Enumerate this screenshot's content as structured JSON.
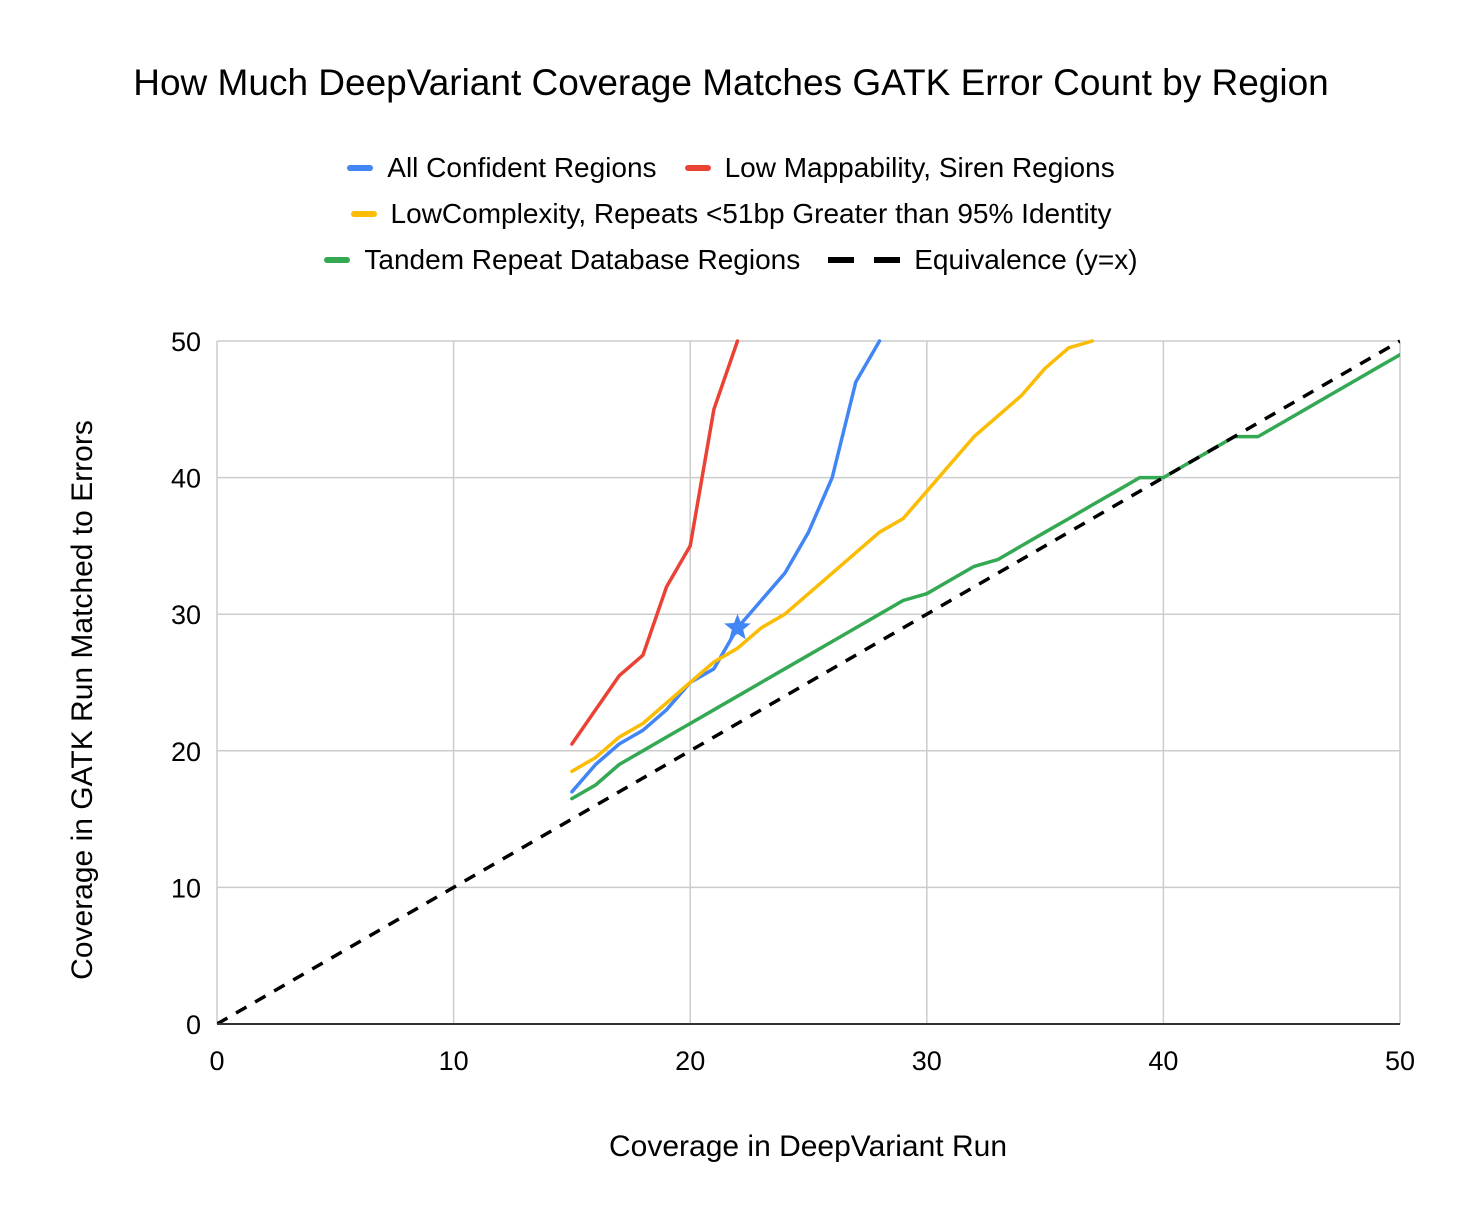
{
  "chart_data": {
    "type": "line",
    "title": "How Much DeepVariant Coverage Matches GATK Error Count by Region",
    "xlabel": "Coverage in DeepVariant Run",
    "ylabel": "Coverage in GATK Run Matched to Errors",
    "xlim": [
      0,
      50
    ],
    "ylim": [
      0,
      50
    ],
    "xticks": [
      "0",
      "10",
      "20",
      "30",
      "40",
      "50"
    ],
    "yticks": [
      "0",
      "10",
      "20",
      "30",
      "40",
      "50"
    ],
    "grid": true,
    "legend_position": "top",
    "series": [
      {
        "name": "All Confident Regions",
        "color": "#4285F4",
        "dashed": false,
        "x": [
          15,
          16,
          17,
          18,
          19,
          20,
          21,
          22,
          23,
          24,
          25,
          26,
          27,
          28
        ],
        "y": [
          17,
          19,
          20.5,
          21.5,
          23,
          25,
          26,
          29,
          31,
          33,
          36,
          40,
          47,
          50
        ]
      },
      {
        "name": "Low Mappability, Siren Regions",
        "color": "#EA4335",
        "dashed": false,
        "x": [
          15,
          16,
          17,
          18,
          19,
          20,
          21,
          22
        ],
        "y": [
          20.5,
          23,
          25.5,
          27,
          32,
          35,
          45,
          50
        ]
      },
      {
        "name": "LowComplexity, Repeats <51bp Greater than 95% Identity",
        "color": "#FBBC04",
        "dashed": false,
        "x": [
          15,
          16,
          17,
          18,
          19,
          20,
          21,
          22,
          23,
          24,
          25,
          26,
          27,
          28,
          29,
          30,
          31,
          32,
          33,
          34,
          35,
          36,
          37
        ],
        "y": [
          18.5,
          19.5,
          21,
          22,
          23.5,
          25,
          26.5,
          27.5,
          29,
          30,
          31.5,
          33,
          34.5,
          36,
          37,
          39,
          41,
          43,
          44.5,
          46,
          48,
          49.5,
          50
        ]
      },
      {
        "name": "Tandem Repeat Database Regions",
        "color": "#34A853",
        "dashed": false,
        "x": [
          15,
          16,
          17,
          18,
          19,
          20,
          21,
          22,
          23,
          24,
          25,
          26,
          27,
          28,
          29,
          30,
          31,
          32,
          33,
          34,
          35,
          36,
          37,
          38,
          39,
          40,
          41,
          42,
          43,
          44,
          45,
          46,
          47,
          48,
          49,
          50
        ],
        "y": [
          16.5,
          17.5,
          19,
          20,
          21,
          22,
          23,
          24,
          25,
          26,
          27,
          28,
          29,
          30,
          31,
          31.5,
          32.5,
          33.5,
          34,
          35,
          36,
          37,
          38,
          39,
          40,
          40,
          41,
          42,
          43,
          43,
          44,
          45,
          46,
          47,
          48,
          49
        ]
      },
      {
        "name": "Equivalence (y=x)",
        "color": "#000000",
        "dashed": true,
        "x": [
          0,
          50
        ],
        "y": [
          0,
          50
        ]
      }
    ],
    "annotations": [
      {
        "type": "marker",
        "shape": "star",
        "series": "All Confident Regions",
        "x": 22,
        "y": 29,
        "color": "#4285F4"
      }
    ]
  }
}
